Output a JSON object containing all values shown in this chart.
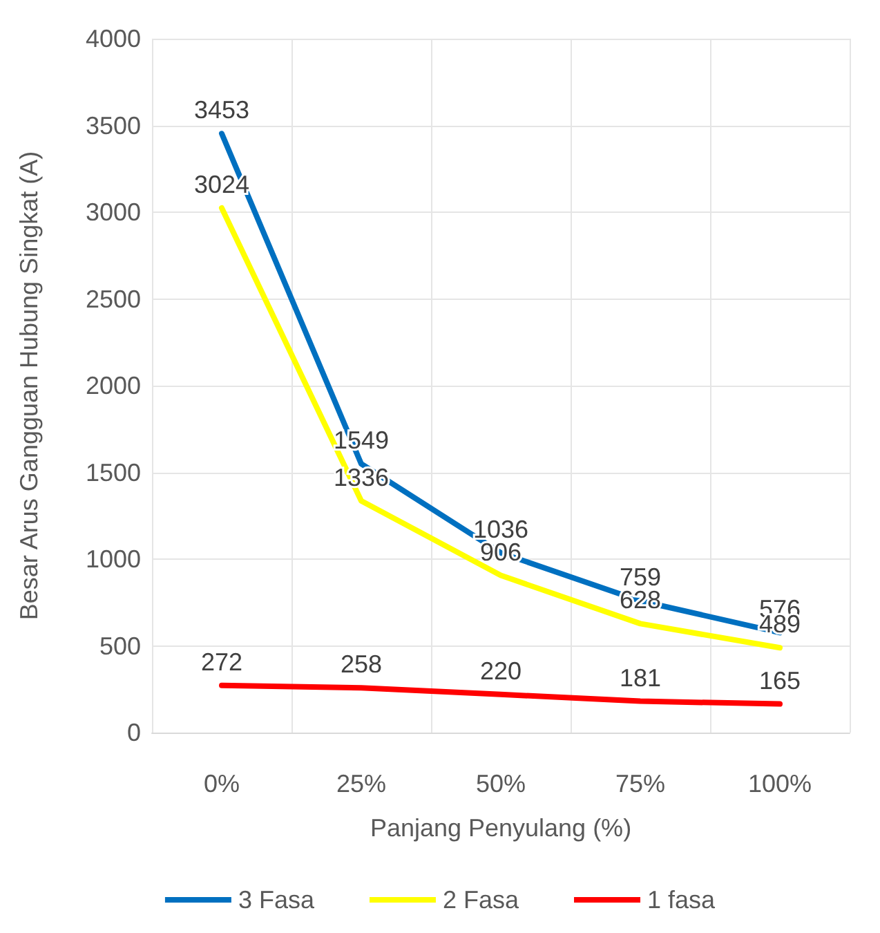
{
  "chart_data": {
    "type": "line",
    "xlabel": "Panjang Penyulang (%)",
    "ylabel": "Besar Arus Gangguan Hubung Singkat (A)",
    "categories": [
      "0%",
      "25%",
      "50%",
      "75%",
      "100%"
    ],
    "series": [
      {
        "name": "3 Fasa",
        "color": "#0070c0",
        "values": [
          3453,
          1549,
          1036,
          759,
          576
        ]
      },
      {
        "name": "2 Fasa",
        "color": "#ffff00",
        "values": [
          3024,
          1336,
          906,
          628,
          489
        ]
      },
      {
        "name": "1 fasa",
        "color": "#ff0000",
        "values": [
          272,
          258,
          220,
          181,
          165
        ]
      }
    ],
    "ylim": [
      0,
      4000
    ],
    "yticks": [
      0,
      500,
      1000,
      1500,
      2000,
      2500,
      3000,
      3500,
      4000
    ],
    "grid": true,
    "legend": "bottom",
    "data_labels": true,
    "marker": "none",
    "line_style": "solid"
  }
}
